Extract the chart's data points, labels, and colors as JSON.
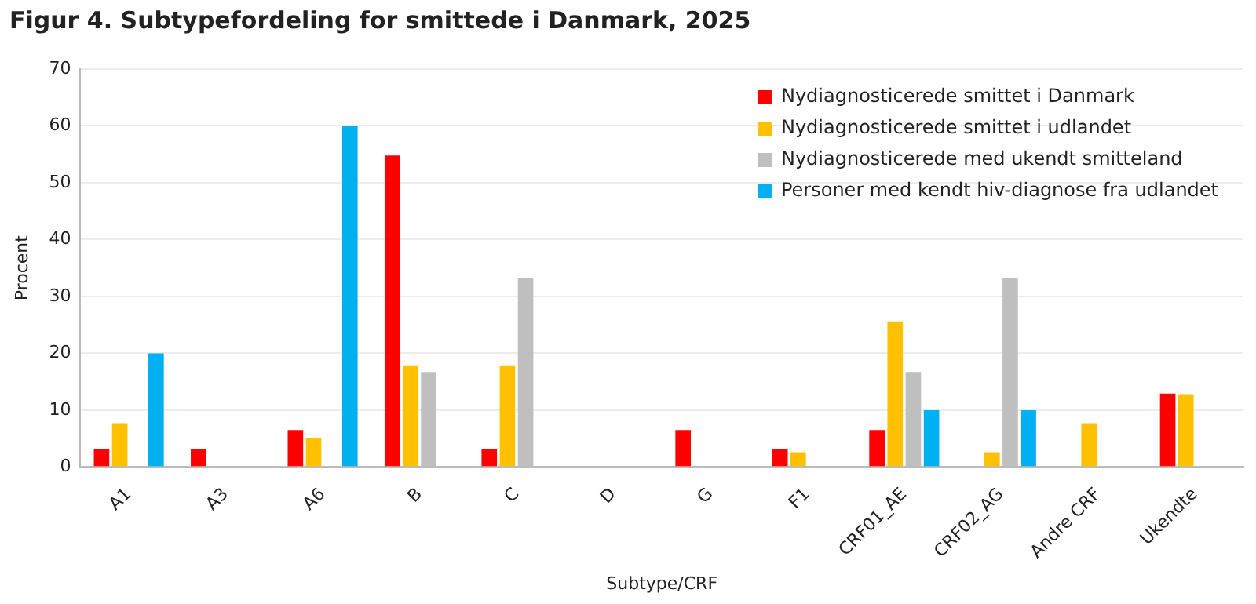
{
  "chart_data": {
    "type": "bar",
    "title": "Figur 4. Subtypefordeling for smittede i Danmark, 2025",
    "xlabel": "Subtype/CRF",
    "ylabel": "Procent",
    "categories": [
      "A1",
      "A3",
      "A6",
      "B",
      "C",
      "D",
      "G",
      "F1",
      "CRF01_AE",
      "CRF02_AG",
      "Andre CRF",
      "Ukendte"
    ],
    "series": [
      {
        "name": "Nydiagnosticerede smittet i Danmark",
        "color": "#ff0000",
        "values": [
          3.2,
          3.2,
          6.5,
          54.8,
          3.2,
          0,
          6.5,
          3.2,
          6.5,
          0,
          0,
          12.9
        ]
      },
      {
        "name": "Nydiagnosticerede smittet i udlandet",
        "color": "#ffc000",
        "values": [
          7.7,
          0,
          5.1,
          17.9,
          17.9,
          0,
          0,
          2.6,
          25.6,
          2.6,
          7.7,
          12.8
        ]
      },
      {
        "name": "Nydiagnosticerede med ukendt smitteland",
        "color": "#bfbfbf",
        "values": [
          0,
          0,
          0,
          16.7,
          33.3,
          0,
          0,
          0,
          16.7,
          33.3,
          0,
          0
        ]
      },
      {
        "name": "Personer med kendt hiv-diagnose fra udlandet",
        "color": "#00b0f0",
        "values": [
          20,
          0,
          60,
          0,
          0,
          0,
          0,
          0,
          10,
          10,
          0,
          0
        ]
      }
    ],
    "ylim": [
      0,
      70
    ],
    "yticks": [
      0,
      10,
      20,
      30,
      40,
      50,
      60,
      70
    ],
    "grid": "y",
    "legend": "top right"
  }
}
